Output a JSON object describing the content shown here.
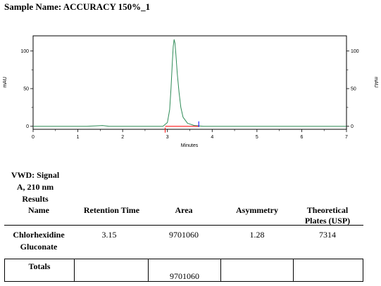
{
  "sample": {
    "label": "Sample Name: ACCURACY 150%_1"
  },
  "chart_data": {
    "type": "line",
    "xlabel": "Minutes",
    "ylabel": "mAU",
    "xlim": [
      0,
      7
    ],
    "ylim": [
      -4,
      120
    ],
    "x_ticks": [
      0,
      1,
      2,
      3,
      4,
      5,
      6,
      7
    ],
    "y_ticks": [
      0,
      50,
      100
    ],
    "grid": false,
    "series": [
      {
        "color": "#2e8b57",
        "peak": {
          "x": 3.15,
          "y": 115
        },
        "x": [
          0.0,
          1.2,
          1.4,
          1.55,
          1.7,
          2.9,
          3.0,
          3.05,
          3.08,
          3.11,
          3.13,
          3.15,
          3.17,
          3.19,
          3.22,
          3.26,
          3.3,
          3.35,
          3.45,
          3.6,
          3.8,
          4.5,
          5.5,
          6.5,
          7.0
        ],
        "y": [
          0,
          0,
          0.5,
          1,
          0,
          0,
          5,
          22,
          50,
          85,
          106,
          115,
          110,
          95,
          70,
          45,
          25,
          12,
          4,
          1,
          0,
          0,
          0,
          0,
          0
        ]
      }
    ],
    "baseline": {
      "color": "#ff0000",
      "x": [
        2.95,
        3.7
      ],
      "y": [
        0,
        0
      ]
    },
    "integration_markers": [
      {
        "x": 2.95,
        "color": "#ff0000"
      },
      {
        "x": 3.7,
        "color": "#0000ff"
      }
    ]
  },
  "results": {
    "caption": [
      "VWD: Signal",
      "A, 210 nm",
      "Results"
    ],
    "headers": [
      "Name",
      "Retention Time",
      "Area",
      "Asymmetry",
      "Theoretical",
      "Plates (USP)"
    ],
    "row": {
      "name_line1": "Chlorhexidine",
      "name_line2": "Gluconate",
      "retention_time": "3.15",
      "area": "9701060",
      "asymmetry": "1.28",
      "plates": "7314"
    },
    "totals": {
      "label": "Totals",
      "area": "9701060"
    }
  }
}
